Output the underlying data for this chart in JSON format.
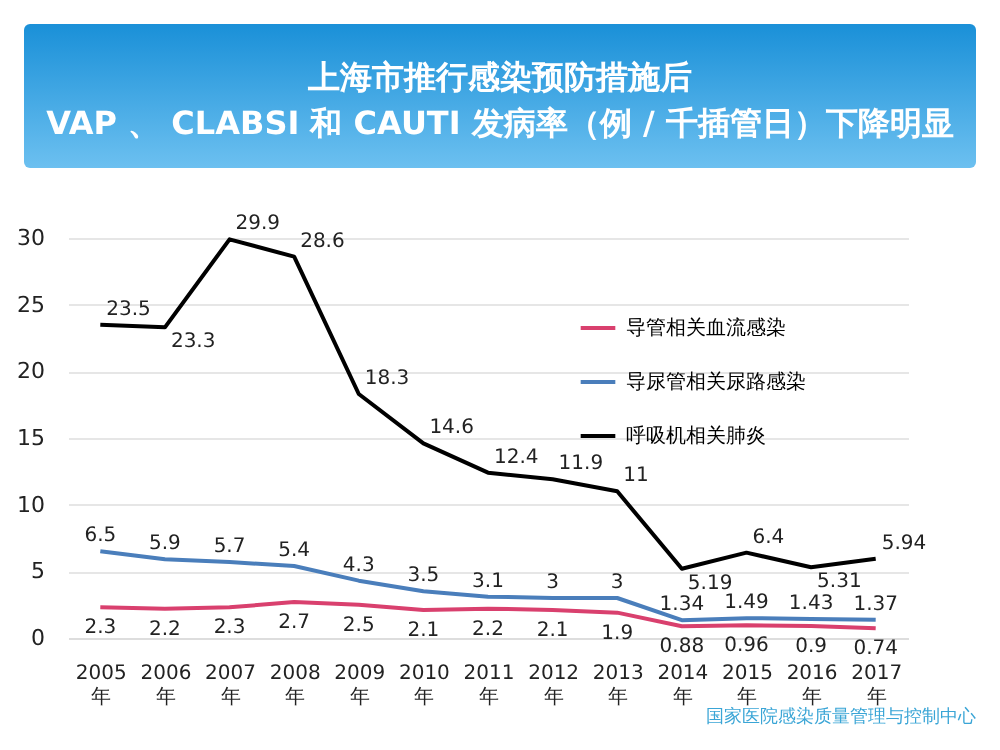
{
  "chart_data": {
    "type": "line",
    "title": "上海市推行感染预防措施后",
    "subtitle": "VAP 、 CLABSI 和 CAUTI 发病率（例 / 千插管日）下降明显",
    "categories": [
      "2005年",
      "2006年",
      "2007年",
      "2008年",
      "2009年",
      "2010年",
      "2011年",
      "2012年",
      "2013年",
      "2014年",
      "2015年",
      "2016年",
      "2017年"
    ],
    "series": [
      {
        "name": "导管相关血流感染",
        "color": "#d9406e",
        "values": [
          2.3,
          2.2,
          2.3,
          2.7,
          2.5,
          2.1,
          2.2,
          2.1,
          1.9,
          0.88,
          0.96,
          0.9,
          0.74
        ]
      },
      {
        "name": "导尿管相关尿路感染",
        "color": "#4a7ebb",
        "values": [
          6.5,
          5.9,
          5.7,
          5.4,
          4.3,
          3.5,
          3.1,
          3,
          3,
          1.34,
          1.49,
          1.43,
          1.37
        ]
      },
      {
        "name": "呼吸机相关肺炎",
        "color": "#000000",
        "values": [
          23.5,
          23.3,
          29.9,
          28.6,
          18.3,
          14.6,
          12.4,
          11.9,
          11,
          5.19,
          6.4,
          5.31,
          5.94
        ]
      }
    ],
    "ylim": [
      0,
      30
    ],
    "yticks": [
      0,
      5,
      10,
      15,
      20,
      25,
      30
    ],
    "grid": "y",
    "legend": "right",
    "data_labels": true,
    "marker": "none",
    "line_style": "solid",
    "annotations": [
      "国家医院感染质量管理与控制中心"
    ]
  }
}
